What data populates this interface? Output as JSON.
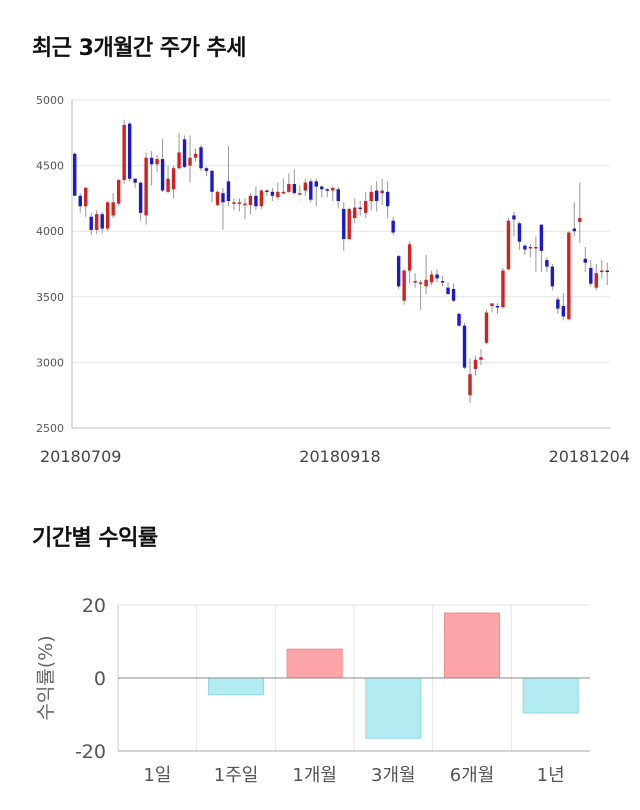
{
  "titles": {
    "price": "최근 3개월간 주가 추세",
    "returns": "기간별 수익률"
  },
  "colors": {
    "up": "#d42020",
    "down": "#1a1acc",
    "wick": "#999999",
    "pos_bar": "#fca5a9",
    "neg_bar": "#b3ebf2",
    "grid": "#e6e6e6"
  },
  "chart_data": [
    {
      "type": "candlestick",
      "title": "최근 3개월간 주가 추세",
      "ylim": [
        2500,
        5000
      ],
      "y_ticks": [
        2500,
        3000,
        3500,
        4000,
        4500,
        5000
      ],
      "x_tick_labels": [
        "20180709",
        "20180918",
        "20181204"
      ],
      "candles": [
        [
          4590,
          4270,
          4600,
          4270
        ],
        [
          4270,
          4190,
          4290,
          4140
        ],
        [
          4190,
          4330,
          4340,
          4110
        ],
        [
          4110,
          4010,
          4140,
          3970
        ],
        [
          4010,
          4130,
          4160,
          3980
        ],
        [
          4130,
          4020,
          4150,
          3980
        ],
        [
          4020,
          4220,
          4230,
          4000
        ],
        [
          4120,
          4220,
          4290,
          4100
        ],
        [
          4210,
          4390,
          4400,
          4190
        ],
        [
          4390,
          4810,
          4850,
          4360
        ],
        [
          4820,
          4400,
          4830,
          4380
        ],
        [
          4400,
          4370,
          4400,
          4330
        ],
        [
          4370,
          4140,
          4380,
          4080
        ],
        [
          4120,
          4560,
          4600,
          4050
        ],
        [
          4560,
          4510,
          4610,
          4350
        ],
        [
          4510,
          4550,
          4580,
          4450
        ],
        [
          4550,
          4310,
          4700,
          4300
        ],
        [
          4300,
          4400,
          4500,
          4290
        ],
        [
          4320,
          4480,
          4500,
          4250
        ],
        [
          4480,
          4600,
          4750,
          4470
        ],
        [
          4700,
          4490,
          4730,
          4480
        ],
        [
          4500,
          4560,
          4730,
          4370
        ],
        [
          4560,
          4590,
          4630,
          4530
        ],
        [
          4640,
          4480,
          4660,
          4460
        ],
        [
          4480,
          4460,
          4490,
          4420
        ],
        [
          4460,
          4300,
          4470,
          4220
        ],
        [
          4200,
          4300,
          4310,
          4190
        ],
        [
          4290,
          4220,
          4330,
          4010
        ],
        [
          4380,
          4230,
          4650,
          4190
        ],
        [
          4220,
          4220,
          4250,
          4160
        ],
        [
          4220,
          4220,
          4250,
          4150
        ],
        [
          4200,
          4210,
          4250,
          4090
        ],
        [
          4200,
          4270,
          4290,
          4130
        ],
        [
          4270,
          4190,
          4340,
          4160
        ],
        [
          4190,
          4310,
          4320,
          4170
        ],
        [
          4310,
          4300,
          4320,
          4270
        ],
        [
          4300,
          4270,
          4330,
          4230
        ],
        [
          4260,
          4300,
          4370,
          4240
        ],
        [
          4300,
          4300,
          4400,
          4280
        ],
        [
          4300,
          4360,
          4440,
          4290
        ],
        [
          4360,
          4290,
          4470,
          4280
        ],
        [
          4290,
          4290,
          4350,
          4280
        ],
        [
          4310,
          4370,
          4400,
          4270
        ],
        [
          4380,
          4240,
          4400,
          4220
        ],
        [
          4380,
          4340,
          4400,
          4190
        ],
        [
          4340,
          4320,
          4350,
          4260
        ],
        [
          4320,
          4310,
          4330,
          4260
        ],
        [
          4310,
          4330,
          4340,
          4230
        ],
        [
          4320,
          4230,
          4340,
          4180
        ],
        [
          4170,
          3940,
          4220,
          3850
        ],
        [
          3940,
          4170,
          4180,
          3930
        ],
        [
          4100,
          4180,
          4250,
          4060
        ],
        [
          4180,
          4170,
          4230,
          4120
        ],
        [
          4140,
          4230,
          4300,
          4100
        ],
        [
          4230,
          4300,
          4350,
          4160
        ],
        [
          4310,
          4230,
          4380,
          4150
        ],
        [
          4290,
          4310,
          4400,
          4200
        ],
        [
          4300,
          4190,
          4380,
          4100
        ],
        [
          4080,
          3990,
          4110,
          3970
        ],
        [
          3810,
          3580,
          3820,
          3560
        ],
        [
          3470,
          3700,
          3710,
          3440
        ],
        [
          3700,
          3900,
          3920,
          3600
        ],
        [
          3620,
          3620,
          3680,
          3570
        ],
        [
          3610,
          3610,
          3630,
          3400
        ],
        [
          3580,
          3630,
          3820,
          3520
        ],
        [
          3610,
          3670,
          3700,
          3590
        ],
        [
          3670,
          3640,
          3710,
          3610
        ],
        [
          3620,
          3610,
          3660,
          3580
        ],
        [
          3570,
          3520,
          3610,
          3520
        ],
        [
          3560,
          3470,
          3600,
          3460
        ],
        [
          3370,
          3280,
          3380,
          3270
        ],
        [
          3280,
          2960,
          3300,
          2950
        ],
        [
          2750,
          2910,
          3030,
          2690
        ],
        [
          2950,
          3020,
          3050,
          2900
        ],
        [
          3020,
          3040,
          3100,
          2980
        ],
        [
          3150,
          3380,
          3400,
          3140
        ],
        [
          3430,
          3450,
          3450,
          3380
        ],
        [
          3430,
          3420,
          3450,
          3370
        ],
        [
          3420,
          3700,
          3720,
          3410
        ],
        [
          3710,
          4080,
          4100,
          3700
        ],
        [
          4120,
          4090,
          4150,
          3960
        ],
        [
          4060,
          3920,
          4070,
          3860
        ],
        [
          3890,
          3860,
          3900,
          3820
        ],
        [
          3880,
          3880,
          3900,
          3800
        ],
        [
          3880,
          3880,
          3960,
          3690
        ],
        [
          4050,
          3850,
          4050,
          3690
        ],
        [
          3780,
          3730,
          3800,
          3690
        ],
        [
          3730,
          3580,
          3750,
          3550
        ],
        [
          3480,
          3410,
          3500,
          3370
        ],
        [
          3430,
          3350,
          3530,
          3320
        ],
        [
          3330,
          3990,
          4000,
          3320
        ],
        [
          4020,
          4000,
          4220,
          3960
        ],
        [
          4070,
          4100,
          4370,
          3910
        ],
        [
          3790,
          3760,
          3880,
          3690
        ],
        [
          3720,
          3600,
          3780,
          3580
        ],
        [
          3570,
          3680,
          3750,
          3550
        ],
        [
          3690,
          3700,
          3780,
          3640
        ],
        [
          3700,
          3690,
          3760,
          3590
        ]
      ]
    },
    {
      "type": "bar",
      "title": "기간별 수익률",
      "ylabel": "수익률(%)",
      "ylim": [
        -20,
        20
      ],
      "y_ticks": [
        -20,
        0,
        20
      ],
      "categories": [
        "1일",
        "1주일",
        "1개월",
        "3개월",
        "6개월",
        "1년"
      ],
      "values": [
        0.0,
        -4.6,
        7.9,
        -16.5,
        17.8,
        -9.6
      ]
    }
  ]
}
